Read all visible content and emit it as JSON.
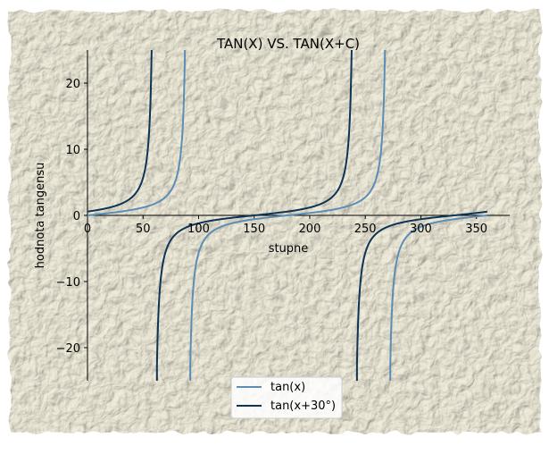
{
  "chart_data": {
    "type": "line",
    "title": "TAN(X) VS. TAN(X+C)",
    "xlabel": "stupne",
    "ylabel": "hodnota tangensu",
    "xlim": [
      0,
      380
    ],
    "ylim": [
      -25,
      25
    ],
    "xticks": [
      0,
      50,
      100,
      150,
      200,
      250,
      300,
      350
    ],
    "yticks": [
      -20,
      -10,
      0,
      10,
      20
    ],
    "ytick_labels": [
      "−20",
      "−10",
      "0",
      "10",
      "20"
    ],
    "x_domain": [
      0,
      360
    ],
    "grid": false,
    "legend_position": "bottom-center",
    "series": [
      {
        "name": "tan(x)",
        "function": "tan(x)",
        "color": "#5b8db5",
        "shift_deg": 0
      },
      {
        "name": "tan(x+30°)",
        "function": "tan(x+30°)",
        "color": "#0d3355",
        "shift_deg": 30
      }
    ]
  },
  "colors": {
    "paper": "#eeead8",
    "frame": "#ffffff",
    "axis": "#000000"
  }
}
